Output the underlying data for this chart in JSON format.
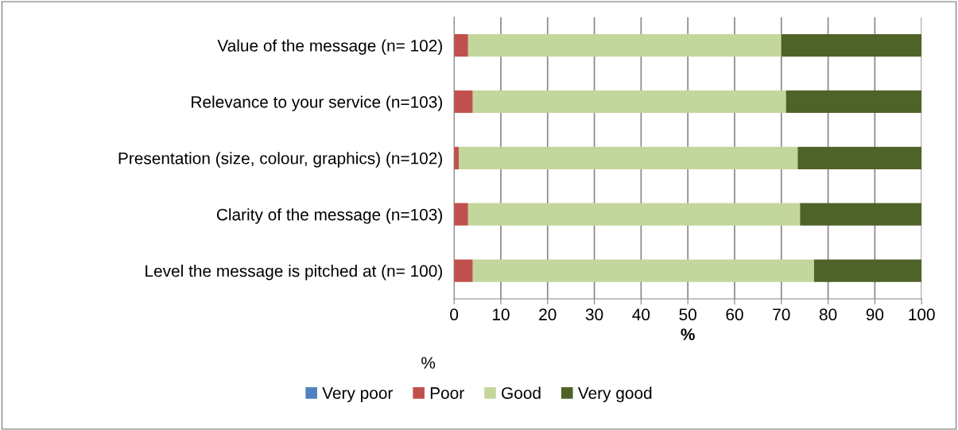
{
  "chart_data": {
    "type": "bar",
    "orientation": "horizontal",
    "stacked": true,
    "categories": [
      "Value of the message (n= 102)",
      "Relevance to your service (n=103)",
      "Presentation (size, colour, graphics) (n=102)",
      "Clarity of the message (n=103)",
      "Level the message is pitched at (n= 100)"
    ],
    "series": [
      {
        "name": "Very poor",
        "color": "#4f81bd",
        "values": [
          0,
          0,
          0,
          0,
          0
        ]
      },
      {
        "name": "Poor",
        "color": "#c0504d",
        "values": [
          3,
          4,
          1,
          3,
          4
        ]
      },
      {
        "name": "Good",
        "color": "#c3d69b",
        "values": [
          67,
          67,
          72.5,
          71,
          73
        ]
      },
      {
        "name": "Very good",
        "color": "#4f6228",
        "values": [
          30,
          29,
          26.5,
          26,
          23
        ]
      }
    ],
    "xlim": [
      0,
      100
    ],
    "xticks": [
      0,
      10,
      20,
      30,
      40,
      50,
      60,
      70,
      80,
      90,
      100
    ],
    "xlabel": "%",
    "annotations": [
      "%"
    ],
    "grid": "x",
    "legend": "bottom"
  }
}
